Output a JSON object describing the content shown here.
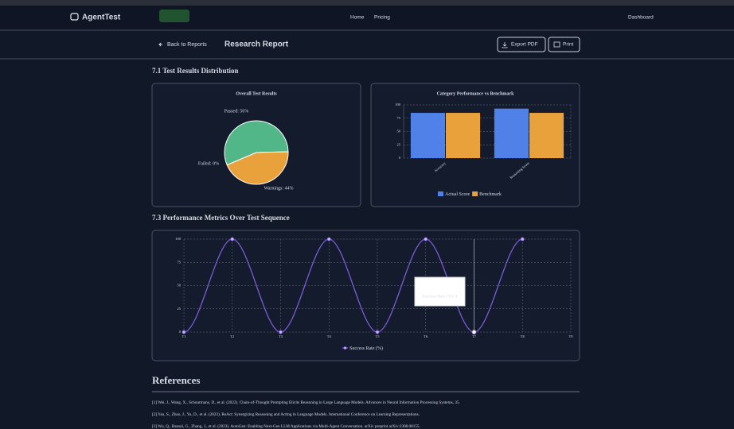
{
  "nav": {
    "brand": "AgentTest",
    "links": [
      "Home",
      "Pricing"
    ],
    "dashboard": "Dashboard"
  },
  "toolbar": {
    "back": "Back to Reports",
    "title": "Research Report",
    "export": "Export PDF",
    "print": "Print"
  },
  "sections": [
    "7.1 Test Results Distribution",
    "7.3 Performance Metrics Over Test Sequence"
  ],
  "chart_data": [
    {
      "type": "pie",
      "title": "Overall Test Results",
      "categories": [
        "Passed",
        "Warnings",
        "Failed"
      ],
      "values": [
        56,
        44,
        0
      ],
      "value_labels": [
        "Passed: 56%",
        "Warnings: 44%",
        "Failed: 0%"
      ],
      "colors": [
        "#52b788",
        "#e9a23b",
        "#e05c5c"
      ]
    },
    {
      "type": "bar",
      "title": "Category Performance vs Benchmark",
      "categories": [
        "Accuracy",
        "Reasoning Score"
      ],
      "series": [
        {
          "name": "Actual Score",
          "color": "#4f81e8",
          "values": [
            85,
            93
          ]
        },
        {
          "name": "Benchmark",
          "color": "#e9a23b",
          "values": [
            85,
            85
          ]
        }
      ],
      "ylim": [
        0,
        100
      ],
      "yticks": [
        0,
        25,
        50,
        75,
        100
      ],
      "grid": true
    },
    {
      "type": "line",
      "title": null,
      "categories": [
        "T1",
        "T2",
        "T3",
        "T4",
        "T5",
        "T6",
        "T7",
        "T8",
        "T9"
      ],
      "series": [
        {
          "name": "Success Rate (%)",
          "color": "#7b5cd6",
          "values": [
            0,
            100,
            0,
            100,
            0,
            100,
            0,
            100,
            null
          ]
        }
      ],
      "ylim": [
        0,
        100
      ],
      "yticks": [
        0,
        25,
        50,
        75,
        100
      ],
      "grid": true,
      "tooltip": "Success Rate (%): 0"
    }
  ],
  "references": {
    "title": "References",
    "items": [
      "[1] Wei, J., Wang, X., Schuurmans, D., et al. (2022). Chain-of-Thought Prompting Elicits Reasoning in Large Language Models. Advances in Neural Information Processing Systems, 35.",
      "[2] Yao, S., Zhao, J., Yu, D., et al. (2023). ReAct: Synergizing Reasoning and Acting in Language Models. International Conference on Learning Representations.",
      "[3] Wu, Q., Bansal, G., Zhang, J., et al. (2023). AutoGen: Enabling Next-Gen LLM Applications via Multi-Agent Conversation. arXiv preprint arXiv:2308.08155."
    ]
  }
}
